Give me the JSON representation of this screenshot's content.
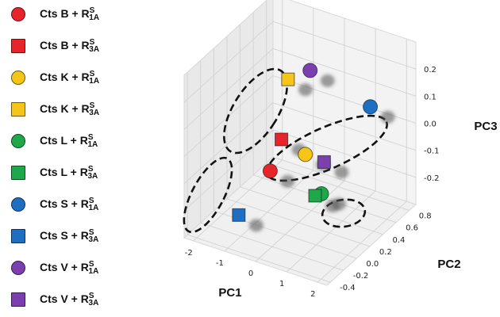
{
  "chart_data": {
    "type": "scatter",
    "projection": "3d",
    "title": "",
    "xlabel": "PC1",
    "ylabel": "PC2",
    "zlabel": "PC3",
    "xlim": [
      -2.3,
      2.3
    ],
    "ylim": [
      -0.45,
      0.9
    ],
    "zlim": [
      -0.3,
      0.3
    ],
    "x_ticks": [
      "-2",
      "-1",
      "0",
      "1",
      "2"
    ],
    "y_ticks": [
      "-0.4",
      "-0.2",
      "0.0",
      "0.2",
      "0.4",
      "0.6",
      "0.8"
    ],
    "z_ticks": [
      "-0.2",
      "-0.1",
      "0.0",
      "0.1",
      "0.2"
    ],
    "grid": true,
    "legend_position": "left",
    "series": [
      {
        "label_main": "Cts B + R",
        "label_sup": "S",
        "label_sub": "1A",
        "marker": "circle",
        "color": "#e8242b",
        "point": [
          -0.95,
          0.22,
          -0.15
        ]
      },
      {
        "label_main": "Cts B + R",
        "label_sup": "S",
        "label_sub": "3A",
        "marker": "square",
        "color": "#e8242b",
        "point": [
          -0.8,
          0.32,
          -0.05
        ]
      },
      {
        "label_main": "Cts K + R",
        "label_sup": "S",
        "label_sub": "1A",
        "marker": "circle",
        "color": "#f5c518",
        "point": [
          -0.2,
          0.4,
          -0.1
        ]
      },
      {
        "label_main": "Cts K + R",
        "label_sup": "S",
        "label_sub": "3A",
        "marker": "square",
        "color": "#f5c518",
        "point": [
          -1.5,
          0.75,
          0.05
        ]
      },
      {
        "label_main": "Cts L + R",
        "label_sup": "S",
        "label_sub": "1A",
        "marker": "circle",
        "color": "#1ea84b",
        "point": [
          0.85,
          0.15,
          -0.15
        ]
      },
      {
        "label_main": "Cts L + R",
        "label_sup": "S",
        "label_sub": "3A",
        "marker": "square",
        "color": "#1ea84b",
        "point": [
          0.75,
          0.1,
          -0.15
        ]
      },
      {
        "label_main": "Cts S + R",
        "label_sup": "S",
        "label_sub": "1A",
        "marker": "circle",
        "color": "#1e6fc4",
        "point": [
          1.15,
          0.75,
          0.05
        ]
      },
      {
        "label_main": "Cts S + R",
        "label_sup": "S",
        "label_sub": "3A",
        "marker": "square",
        "color": "#1e6fc4",
        "point": [
          -1.6,
          0.05,
          -0.3
        ]
      },
      {
        "label_main": "Cts V + R",
        "label_sup": "S",
        "label_sub": "1A",
        "marker": "circle",
        "color": "#7b3fb0",
        "point": [
          -1.0,
          0.85,
          0.08
        ]
      },
      {
        "label_main": "Cts V + R",
        "label_sup": "S",
        "label_sub": "3A",
        "marker": "square",
        "color": "#7b3fb0",
        "point": [
          0.3,
          0.45,
          -0.12
        ]
      }
    ]
  }
}
